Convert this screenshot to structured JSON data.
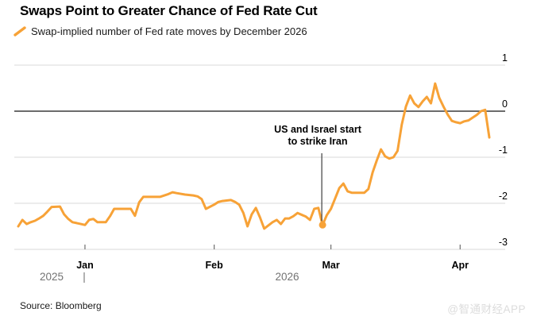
{
  "header": {
    "title": "Swaps Point to Greater Chance of Fed Rate Cut",
    "legend": {
      "label": "Swap-implied number of Fed rate moves by December 2026",
      "marker_color": "#F7A237"
    }
  },
  "annotation": {
    "line1": "US and Israel start",
    "line2": "to strike Iran",
    "date": "2026-02-27"
  },
  "footer": {
    "source": "Source: Bloomberg",
    "watermark": "@智通财经APP"
  },
  "colors": {
    "line": "#F7A237",
    "gridline": "#D9D9D9",
    "zero_line": "#3C3C3C",
    "tick": "#6E6E6E",
    "month_label": "#000000",
    "year_label": "#737373",
    "y_label": "#000000",
    "annotation_line": "#3C3C3C"
  },
  "chart_data": {
    "type": "line",
    "title": "Swaps Point to Greater Chance of Fed Rate Cut",
    "series_name": "Swap-implied number of Fed rate moves by December 2026",
    "ylim": [
      -3,
      1
    ],
    "y_ticks": [
      1,
      0,
      -1,
      -2,
      -3
    ],
    "zero_baseline": true,
    "grid": "horizontal",
    "legend_position": "top-left",
    "x_range": [
      "2025-12-16",
      "2026-04-08"
    ],
    "x_ticks": [
      {
        "date": "2026-01-01",
        "label": "Jan"
      },
      {
        "date": "2026-02-01",
        "label": "Feb"
      },
      {
        "date": "2026-03-01",
        "label": "Mar"
      },
      {
        "date": "2026-04-01",
        "label": "Apr"
      }
    ],
    "year_labels": {
      "left": "2025",
      "divider": "|",
      "right": "2026"
    },
    "marker_point": {
      "date": "2026-02-27",
      "value": -2.47
    },
    "points": [
      [
        "2025-12-16",
        -2.5
      ],
      [
        "2025-12-17",
        -2.36
      ],
      [
        "2025-12-18",
        -2.45
      ],
      [
        "2025-12-19",
        -2.41
      ],
      [
        "2025-12-20",
        -2.38
      ],
      [
        "2025-12-21",
        -2.33
      ],
      [
        "2025-12-22",
        -2.27
      ],
      [
        "2025-12-23",
        -2.18
      ],
      [
        "2025-12-24",
        -2.08
      ],
      [
        "2025-12-26",
        -2.07
      ],
      [
        "2025-12-27",
        -2.24
      ],
      [
        "2025-12-28",
        -2.34
      ],
      [
        "2025-12-29",
        -2.41
      ],
      [
        "2025-12-30",
        -2.43
      ],
      [
        "2025-12-31",
        -2.45
      ],
      [
        "2026-01-01",
        -2.47
      ],
      [
        "2026-01-02",
        -2.36
      ],
      [
        "2026-01-03",
        -2.34
      ],
      [
        "2026-01-04",
        -2.41
      ],
      [
        "2026-01-06",
        -2.41
      ],
      [
        "2026-01-07",
        -2.28
      ],
      [
        "2026-01-08",
        -2.12
      ],
      [
        "2026-01-12",
        -2.12
      ],
      [
        "2026-01-13",
        -2.27
      ],
      [
        "2026-01-14",
        -1.98
      ],
      [
        "2026-01-15",
        -1.86
      ],
      [
        "2026-01-19",
        -1.86
      ],
      [
        "2026-01-21",
        -1.8
      ],
      [
        "2026-01-22",
        -1.76
      ],
      [
        "2026-01-23",
        -1.78
      ],
      [
        "2026-01-25",
        -1.81
      ],
      [
        "2026-01-27",
        -1.83
      ],
      [
        "2026-01-28",
        -1.85
      ],
      [
        "2026-01-29",
        -1.91
      ],
      [
        "2026-01-30",
        -2.12
      ],
      [
        "2026-02-01",
        -2.03
      ],
      [
        "2026-02-02",
        -1.97
      ],
      [
        "2026-02-03",
        -1.95
      ],
      [
        "2026-02-05",
        -1.93
      ],
      [
        "2026-02-06",
        -1.97
      ],
      [
        "2026-02-07",
        -2.03
      ],
      [
        "2026-02-08",
        -2.21
      ],
      [
        "2026-02-09",
        -2.5
      ],
      [
        "2026-02-10",
        -2.24
      ],
      [
        "2026-02-11",
        -2.1
      ],
      [
        "2026-02-12",
        -2.31
      ],
      [
        "2026-02-13",
        -2.55
      ],
      [
        "2026-02-15",
        -2.41
      ],
      [
        "2026-02-16",
        -2.36
      ],
      [
        "2026-02-17",
        -2.45
      ],
      [
        "2026-02-18",
        -2.33
      ],
      [
        "2026-02-19",
        -2.33
      ],
      [
        "2026-02-20",
        -2.28
      ],
      [
        "2026-02-21",
        -2.21
      ],
      [
        "2026-02-23",
        -2.29
      ],
      [
        "2026-02-24",
        -2.36
      ],
      [
        "2026-02-25",
        -2.12
      ],
      [
        "2026-02-26",
        -2.1
      ],
      [
        "2026-02-27",
        -2.47
      ],
      [
        "2026-02-28",
        -2.26
      ],
      [
        "2026-03-01",
        -2.12
      ],
      [
        "2026-03-02",
        -1.9
      ],
      [
        "2026-03-03",
        -1.67
      ],
      [
        "2026-03-04",
        -1.57
      ],
      [
        "2026-03-05",
        -1.74
      ],
      [
        "2026-03-06",
        -1.77
      ],
      [
        "2026-03-09",
        -1.77
      ],
      [
        "2026-03-10",
        -1.69
      ],
      [
        "2026-03-11",
        -1.33
      ],
      [
        "2026-03-12",
        -1.07
      ],
      [
        "2026-03-13",
        -0.83
      ],
      [
        "2026-03-14",
        -0.98
      ],
      [
        "2026-03-15",
        -1.03
      ],
      [
        "2026-03-16",
        -1.0
      ],
      [
        "2026-03-17",
        -0.86
      ],
      [
        "2026-03-18",
        -0.29
      ],
      [
        "2026-03-19",
        0.1
      ],
      [
        "2026-03-20",
        0.34
      ],
      [
        "2026-03-21",
        0.17
      ],
      [
        "2026-03-22",
        0.09
      ],
      [
        "2026-03-23",
        0.21
      ],
      [
        "2026-03-24",
        0.31
      ],
      [
        "2026-03-25",
        0.17
      ],
      [
        "2026-03-26",
        0.6
      ],
      [
        "2026-03-27",
        0.29
      ],
      [
        "2026-03-28",
        0.1
      ],
      [
        "2026-03-29",
        -0.07
      ],
      [
        "2026-03-30",
        -0.21
      ],
      [
        "2026-03-31",
        -0.24
      ],
      [
        "2026-04-01",
        -0.26
      ],
      [
        "2026-04-02",
        -0.22
      ],
      [
        "2026-04-03",
        -0.2
      ],
      [
        "2026-04-04",
        -0.14
      ],
      [
        "2026-04-05",
        -0.08
      ],
      [
        "2026-04-06",
        0.0
      ],
      [
        "2026-04-07",
        0.03
      ],
      [
        "2026-04-08",
        -0.57
      ]
    ]
  }
}
